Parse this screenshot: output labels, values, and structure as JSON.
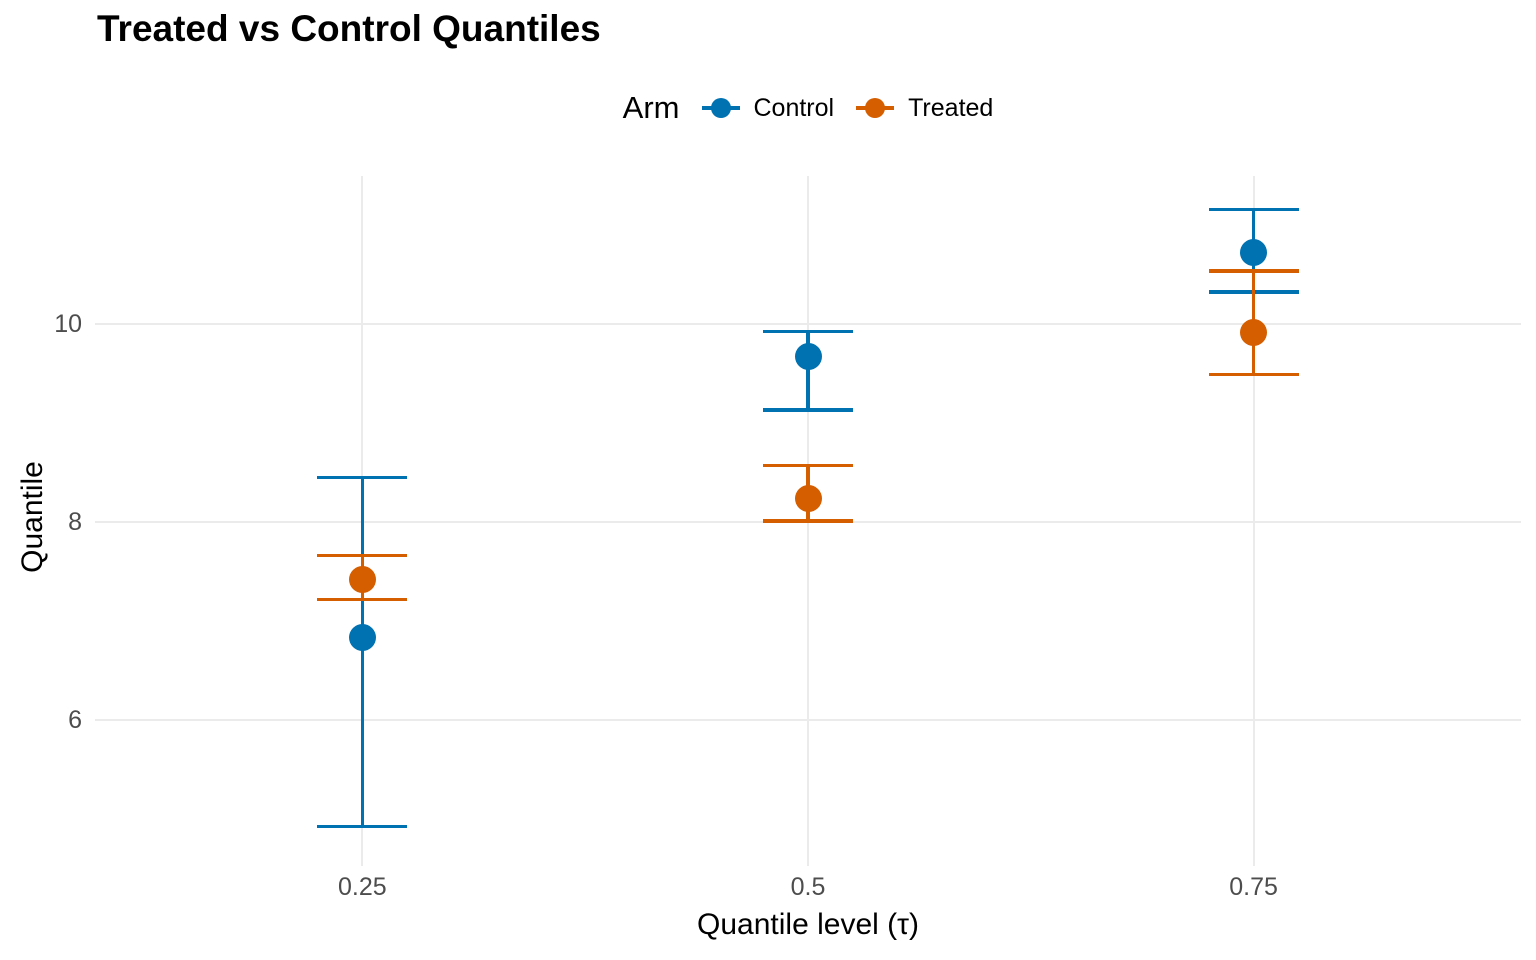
{
  "title": "Treated vs Control Quantiles",
  "legend": {
    "title": "Arm",
    "items": [
      {
        "label": "Control",
        "color": "#0072B2"
      },
      {
        "label": "Treated",
        "color": "#D55E00"
      }
    ]
  },
  "colors": {
    "control": "#0072B2",
    "treated": "#D55E00",
    "gridline": "#EBEBEB",
    "tick_label": "#4D4D4D",
    "title_text": "#000000",
    "background": "#FFFFFF"
  },
  "chart_data": {
    "type": "scatter",
    "subtype": "pointrange-with-errorbars",
    "title": "Treated vs Control Quantiles",
    "xlabel": "Quantile level (τ)",
    "ylabel": "Quantile",
    "x_ticks": [
      0.25,
      0.5,
      0.75
    ],
    "y_ticks": [
      6,
      8,
      10
    ],
    "x_range": [
      0.1,
      0.9
    ],
    "y_range": [
      4.53,
      11.49
    ],
    "grid": "major-only",
    "legend_position": "top-center",
    "legend_title": "Arm",
    "series": [
      {
        "name": "Control",
        "color": "#0072B2",
        "points": [
          {
            "x": 0.25,
            "y": 6.83,
            "lower": 4.93,
            "upper": 8.45
          },
          {
            "x": 0.5,
            "y": 9.67,
            "lower": 9.13,
            "upper": 9.92
          },
          {
            "x": 0.75,
            "y": 10.72,
            "lower": 10.32,
            "upper": 11.15
          }
        ]
      },
      {
        "name": "Treated",
        "color": "#D55E00",
        "points": [
          {
            "x": 0.25,
            "y": 7.42,
            "lower": 7.22,
            "upper": 7.66
          },
          {
            "x": 0.5,
            "y": 8.24,
            "lower": 8.01,
            "upper": 8.57
          },
          {
            "x": 0.75,
            "y": 9.91,
            "lower": 9.49,
            "upper": 10.53
          }
        ]
      }
    ]
  }
}
